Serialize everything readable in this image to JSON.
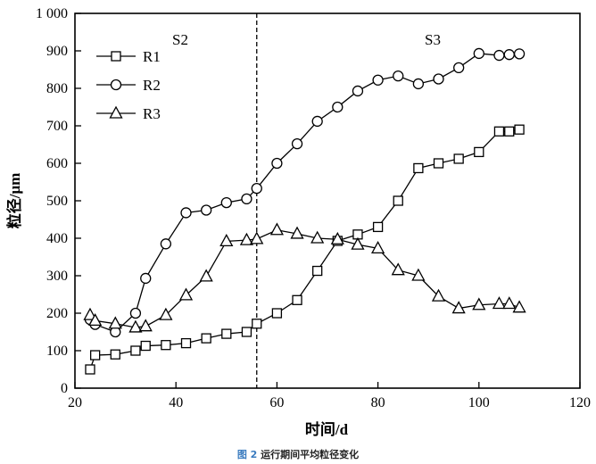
{
  "chart_data": {
    "type": "line",
    "xlabel": "时间/d",
    "ylabel": "粒径/μm",
    "xlim": [
      20,
      120
    ],
    "ylim": [
      0,
      1000
    ],
    "xticks": [
      "20",
      "40",
      "60",
      "80",
      "100",
      "120"
    ],
    "yticks": [
      "0",
      "100",
      "200",
      "300",
      "400",
      "500",
      "600",
      "700",
      "800",
      "900",
      "1 000"
    ],
    "grid": false,
    "legend_position": "top-left",
    "divider_x": 56,
    "annotations": [
      "S2",
      "S3"
    ],
    "x": [
      23,
      24,
      28,
      32,
      34,
      38,
      42,
      46,
      50,
      54,
      56,
      60,
      64,
      68,
      72,
      76,
      80,
      84,
      88,
      92,
      96,
      100,
      104,
      106,
      108
    ],
    "series": [
      {
        "name": "R1",
        "marker": "square",
        "values": [
          50,
          88,
          90,
          100,
          113,
          115,
          120,
          133,
          145,
          150,
          172,
          200,
          235,
          313,
          393,
          410,
          430,
          500,
          587,
          600,
          612,
          630,
          685,
          685,
          690
        ]
      },
      {
        "name": "R2",
        "marker": "circle",
        "values": [
          183,
          170,
          150,
          200,
          293,
          385,
          468,
          475,
          495,
          505,
          533,
          600,
          652,
          712,
          750,
          793,
          822,
          833,
          812,
          825,
          855,
          893,
          888,
          890,
          892
        ]
      },
      {
        "name": "R3",
        "marker": "triangle",
        "values": [
          195,
          180,
          172,
          162,
          165,
          195,
          248,
          298,
          392,
          395,
          398,
          422,
          412,
          400,
          397,
          383,
          373,
          315,
          300,
          245,
          213,
          222,
          225,
          225,
          215
        ]
      }
    ]
  },
  "caption": {
    "figure": "图 2",
    "text": "运行期间平均粒径变化"
  }
}
